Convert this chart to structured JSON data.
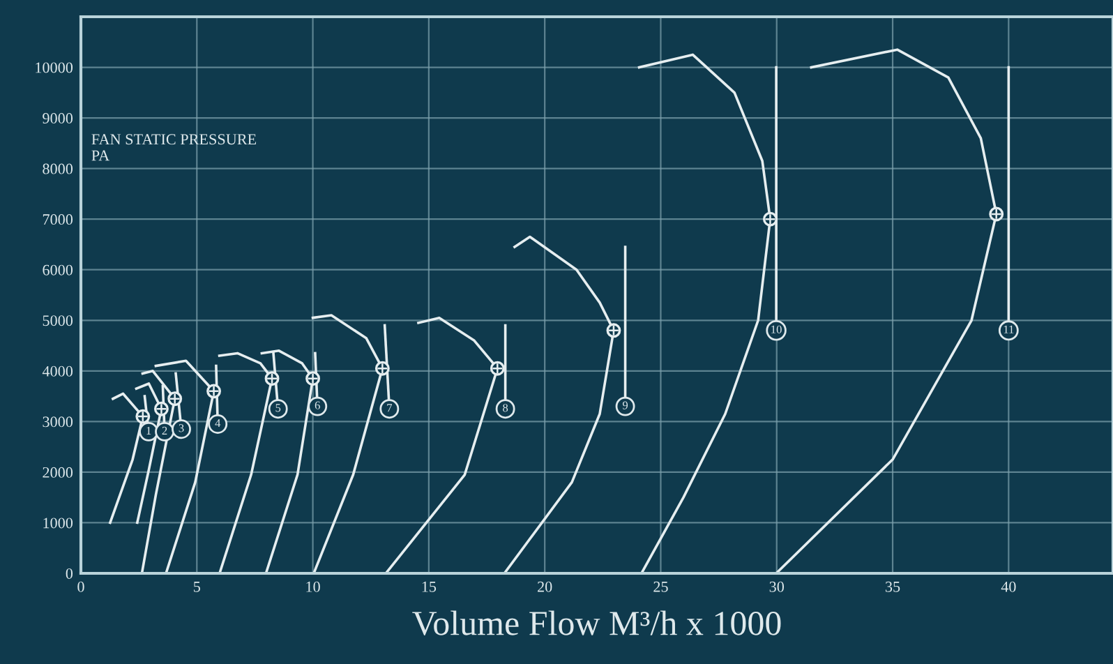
{
  "chart_data": {
    "type": "line",
    "xlabel": "Volume Flow M³/h x 1000",
    "ylabel": "FAN STATIC PRESSURE\nPA",
    "xlim": [
      0,
      44.5
    ],
    "xticks": [
      0,
      5,
      10,
      15,
      20,
      25,
      30,
      35,
      40
    ],
    "ylim": [
      0,
      11000
    ],
    "yticks": [
      0,
      1000,
      2000,
      3000,
      4000,
      5000,
      6000,
      7000,
      8000,
      9000,
      10000
    ],
    "grid": true,
    "line_style": "solid",
    "series": [
      {
        "color": "#e6eef0",
        "x": [
          1.38,
          1.82,
          2.67,
          2.23,
          1.26
        ],
        "values": [
          3450,
          3550,
          3100,
          2250,
          1000
        ]
      },
      {
        "color": "#e6eef0",
        "x": [
          2.75,
          2.92
        ],
        "values": [
          3500,
          2800
        ]
      },
      {
        "color": "#e6eef0",
        "x": [
          2.39,
          2.93,
          3.47,
          2.93,
          2.43
        ],
        "values": [
          3650,
          3750,
          3250,
          2050,
          1000
        ]
      },
      {
        "color": "#e6eef0",
        "x": [
          3.53,
          3.61
        ],
        "values": [
          3700,
          2800
        ]
      },
      {
        "color": "#e6eef0",
        "x": [
          2.66,
          3.1,
          4.05,
          3.23,
          2.63
        ],
        "values": [
          3950,
          4000,
          3450,
          1550,
          0
        ]
      },
      {
        "color": "#e6eef0",
        "x": [
          4.09,
          4.33
        ],
        "values": [
          3950,
          2850
        ]
      },
      {
        "color": "#e6eef0",
        "x": [
          3.23,
          4.53,
          5.73,
          4.93,
          3.67
        ],
        "values": [
          4100,
          4200,
          3600,
          1800,
          0
        ]
      },
      {
        "color": "#e6eef0",
        "x": [
          5.83,
          5.9
        ],
        "values": [
          4100,
          2950
        ]
      },
      {
        "color": "#e6eef0",
        "x": [
          5.97,
          6.75,
          7.74,
          8.24,
          7.34,
          5.98
        ],
        "values": [
          4300,
          4350,
          4150,
          3850,
          1950,
          0
        ]
      },
      {
        "color": "#e6eef0",
        "x": [
          8.3,
          8.5
        ],
        "values": [
          4350,
          3250
        ]
      },
      {
        "color": "#e6eef0",
        "x": [
          7.8,
          8.54,
          9.54,
          10.0,
          9.34,
          7.98
        ],
        "values": [
          4350,
          4400,
          4150,
          3850,
          1950,
          0
        ]
      },
      {
        "color": "#e6eef0",
        "x": [
          10.1,
          10.2
        ],
        "values": [
          4350,
          3300
        ]
      },
      {
        "color": "#e6eef0",
        "x": [
          10.0,
          10.8,
          12.3,
          13.0,
          11.74,
          10.04
        ],
        "values": [
          5050,
          5100,
          4650,
          4050,
          1950,
          0
        ]
      },
      {
        "color": "#e6eef0",
        "x": [
          13.1,
          13.3
        ],
        "values": [
          4900,
          3250
        ]
      },
      {
        "color": "#e6eef0",
        "x": [
          14.55,
          15.45,
          16.96,
          17.96,
          16.55,
          13.15
        ],
        "values": [
          4950,
          5050,
          4600,
          4050,
          1950,
          0
        ]
      },
      {
        "color": "#e6eef0",
        "x": [
          18.3,
          18.3
        ],
        "values": [
          4900,
          3250
        ]
      },
      {
        "color": "#e6eef0",
        "x": [
          18.7,
          19.36,
          21.37,
          22.37,
          22.97,
          22.37,
          21.17,
          18.26
        ],
        "values": [
          6450,
          6650,
          6000,
          5350,
          4800,
          3150,
          1800,
          0
        ]
      },
      {
        "color": "#e6eef0",
        "x": [
          23.47,
          23.47
        ],
        "values": [
          6450,
          3300
        ]
      },
      {
        "color": "#e6eef0",
        "x": [
          24.07,
          26.38,
          28.18,
          29.38,
          29.72,
          29.2,
          27.78,
          25.98,
          24.17
        ],
        "values": [
          10000,
          10250,
          9500,
          8150,
          7000,
          5000,
          3150,
          1500,
          0
        ]
      },
      {
        "color": "#e6eef0",
        "x": [
          29.98,
          29.98
        ],
        "values": [
          10000,
          4800
        ]
      },
      {
        "color": "#e6eef0",
        "x": [
          31.49,
          35.2,
          37.4,
          38.8,
          39.47,
          38.4,
          35.0,
          29.98
        ],
        "values": [
          10000,
          10350,
          9800,
          8600,
          7100,
          5000,
          2250,
          0
        ]
      },
      {
        "color": "#e6eef0",
        "x": [
          40.0,
          40.0
        ],
        "values": [
          10000,
          4800
        ]
      },
      {
        "type": "scatter",
        "marker": "circle",
        "color": "#e6eef0",
        "x": [
          2.67,
          3.47,
          4.05,
          5.73,
          8.24,
          10.0,
          13.0,
          17.96,
          22.97,
          29.72,
          39.47
        ],
        "values": [
          3100,
          3250,
          3450,
          3600,
          3850,
          3850,
          4050,
          4050,
          4800,
          7000,
          7100
        ]
      }
    ],
    "annotations": [
      {
        "text": "1",
        "x": 2.92,
        "y": 2800
      },
      {
        "text": "2",
        "x": 3.61,
        "y": 2800
      },
      {
        "text": "3",
        "x": 4.33,
        "y": 2850
      },
      {
        "text": "4",
        "x": 5.9,
        "y": 2950
      },
      {
        "text": "5",
        "x": 8.5,
        "y": 3250
      },
      {
        "text": "6",
        "x": 10.2,
        "y": 3300
      },
      {
        "text": "7",
        "x": 13.3,
        "y": 3250
      },
      {
        "text": "8",
        "x": 18.3,
        "y": 3250
      },
      {
        "text": "9",
        "x": 23.47,
        "y": 3300
      },
      {
        "text": "10",
        "x": 29.98,
        "y": 4800
      },
      {
        "text": "11",
        "x": 40.0,
        "y": 4800
      }
    ]
  }
}
